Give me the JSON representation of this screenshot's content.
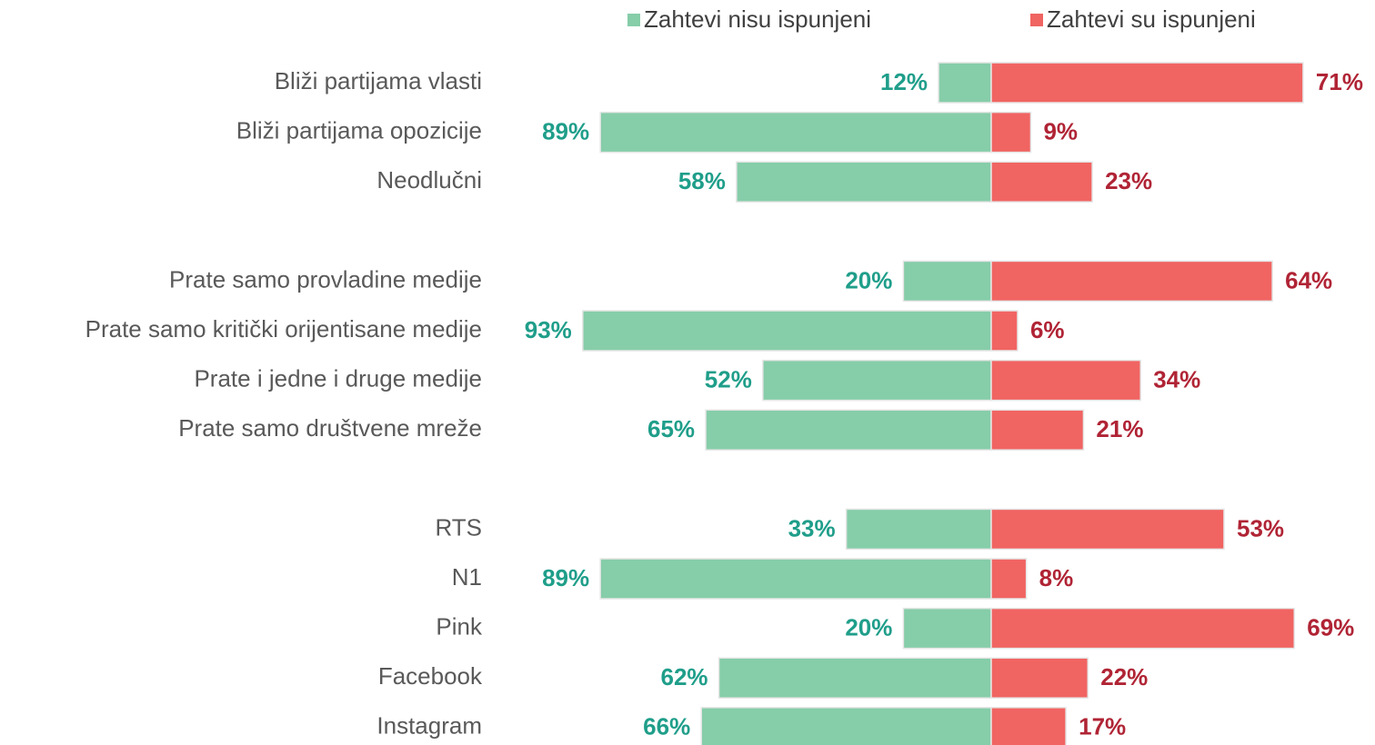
{
  "chart_data": {
    "type": "diverging-bar",
    "categories": [
      "Bliži partijama vlasti",
      "Bliži partijama opozicije",
      "Neodlučni",
      null,
      "Prate samo provladine medije",
      "Prate samo kritički orijentisane medije",
      "Prate i jedne i druge medije",
      "Prate samo društvene mreže",
      null,
      "RTS",
      "N1",
      "Pink",
      "Facebook",
      "Instagram"
    ],
    "series": [
      {
        "name": "Zahtevi nisu ispunjeni",
        "color": "#86cda9",
        "label_color": "#1f9e8a",
        "values": [
          12,
          89,
          58,
          null,
          20,
          93,
          52,
          65,
          null,
          33,
          89,
          20,
          62,
          66
        ],
        "value_labels": [
          "12%",
          "89%",
          "58%",
          null,
          "20%",
          "93%",
          "52%",
          "65%",
          null,
          "33%",
          "89%",
          "20%",
          "62%",
          "66%"
        ]
      },
      {
        "name": "Zahtevi su ispunjeni",
        "color": "#f06462",
        "label_color": "#b02435",
        "values": [
          71,
          9,
          23,
          null,
          64,
          6,
          34,
          21,
          null,
          53,
          8,
          69,
          22,
          17
        ],
        "value_labels": [
          "71%",
          "9%",
          "23%",
          null,
          "64%",
          "6%",
          "34%",
          "21%",
          null,
          "53%",
          "8%",
          "69%",
          "22%",
          "17%"
        ]
      }
    ],
    "legend": "top"
  }
}
